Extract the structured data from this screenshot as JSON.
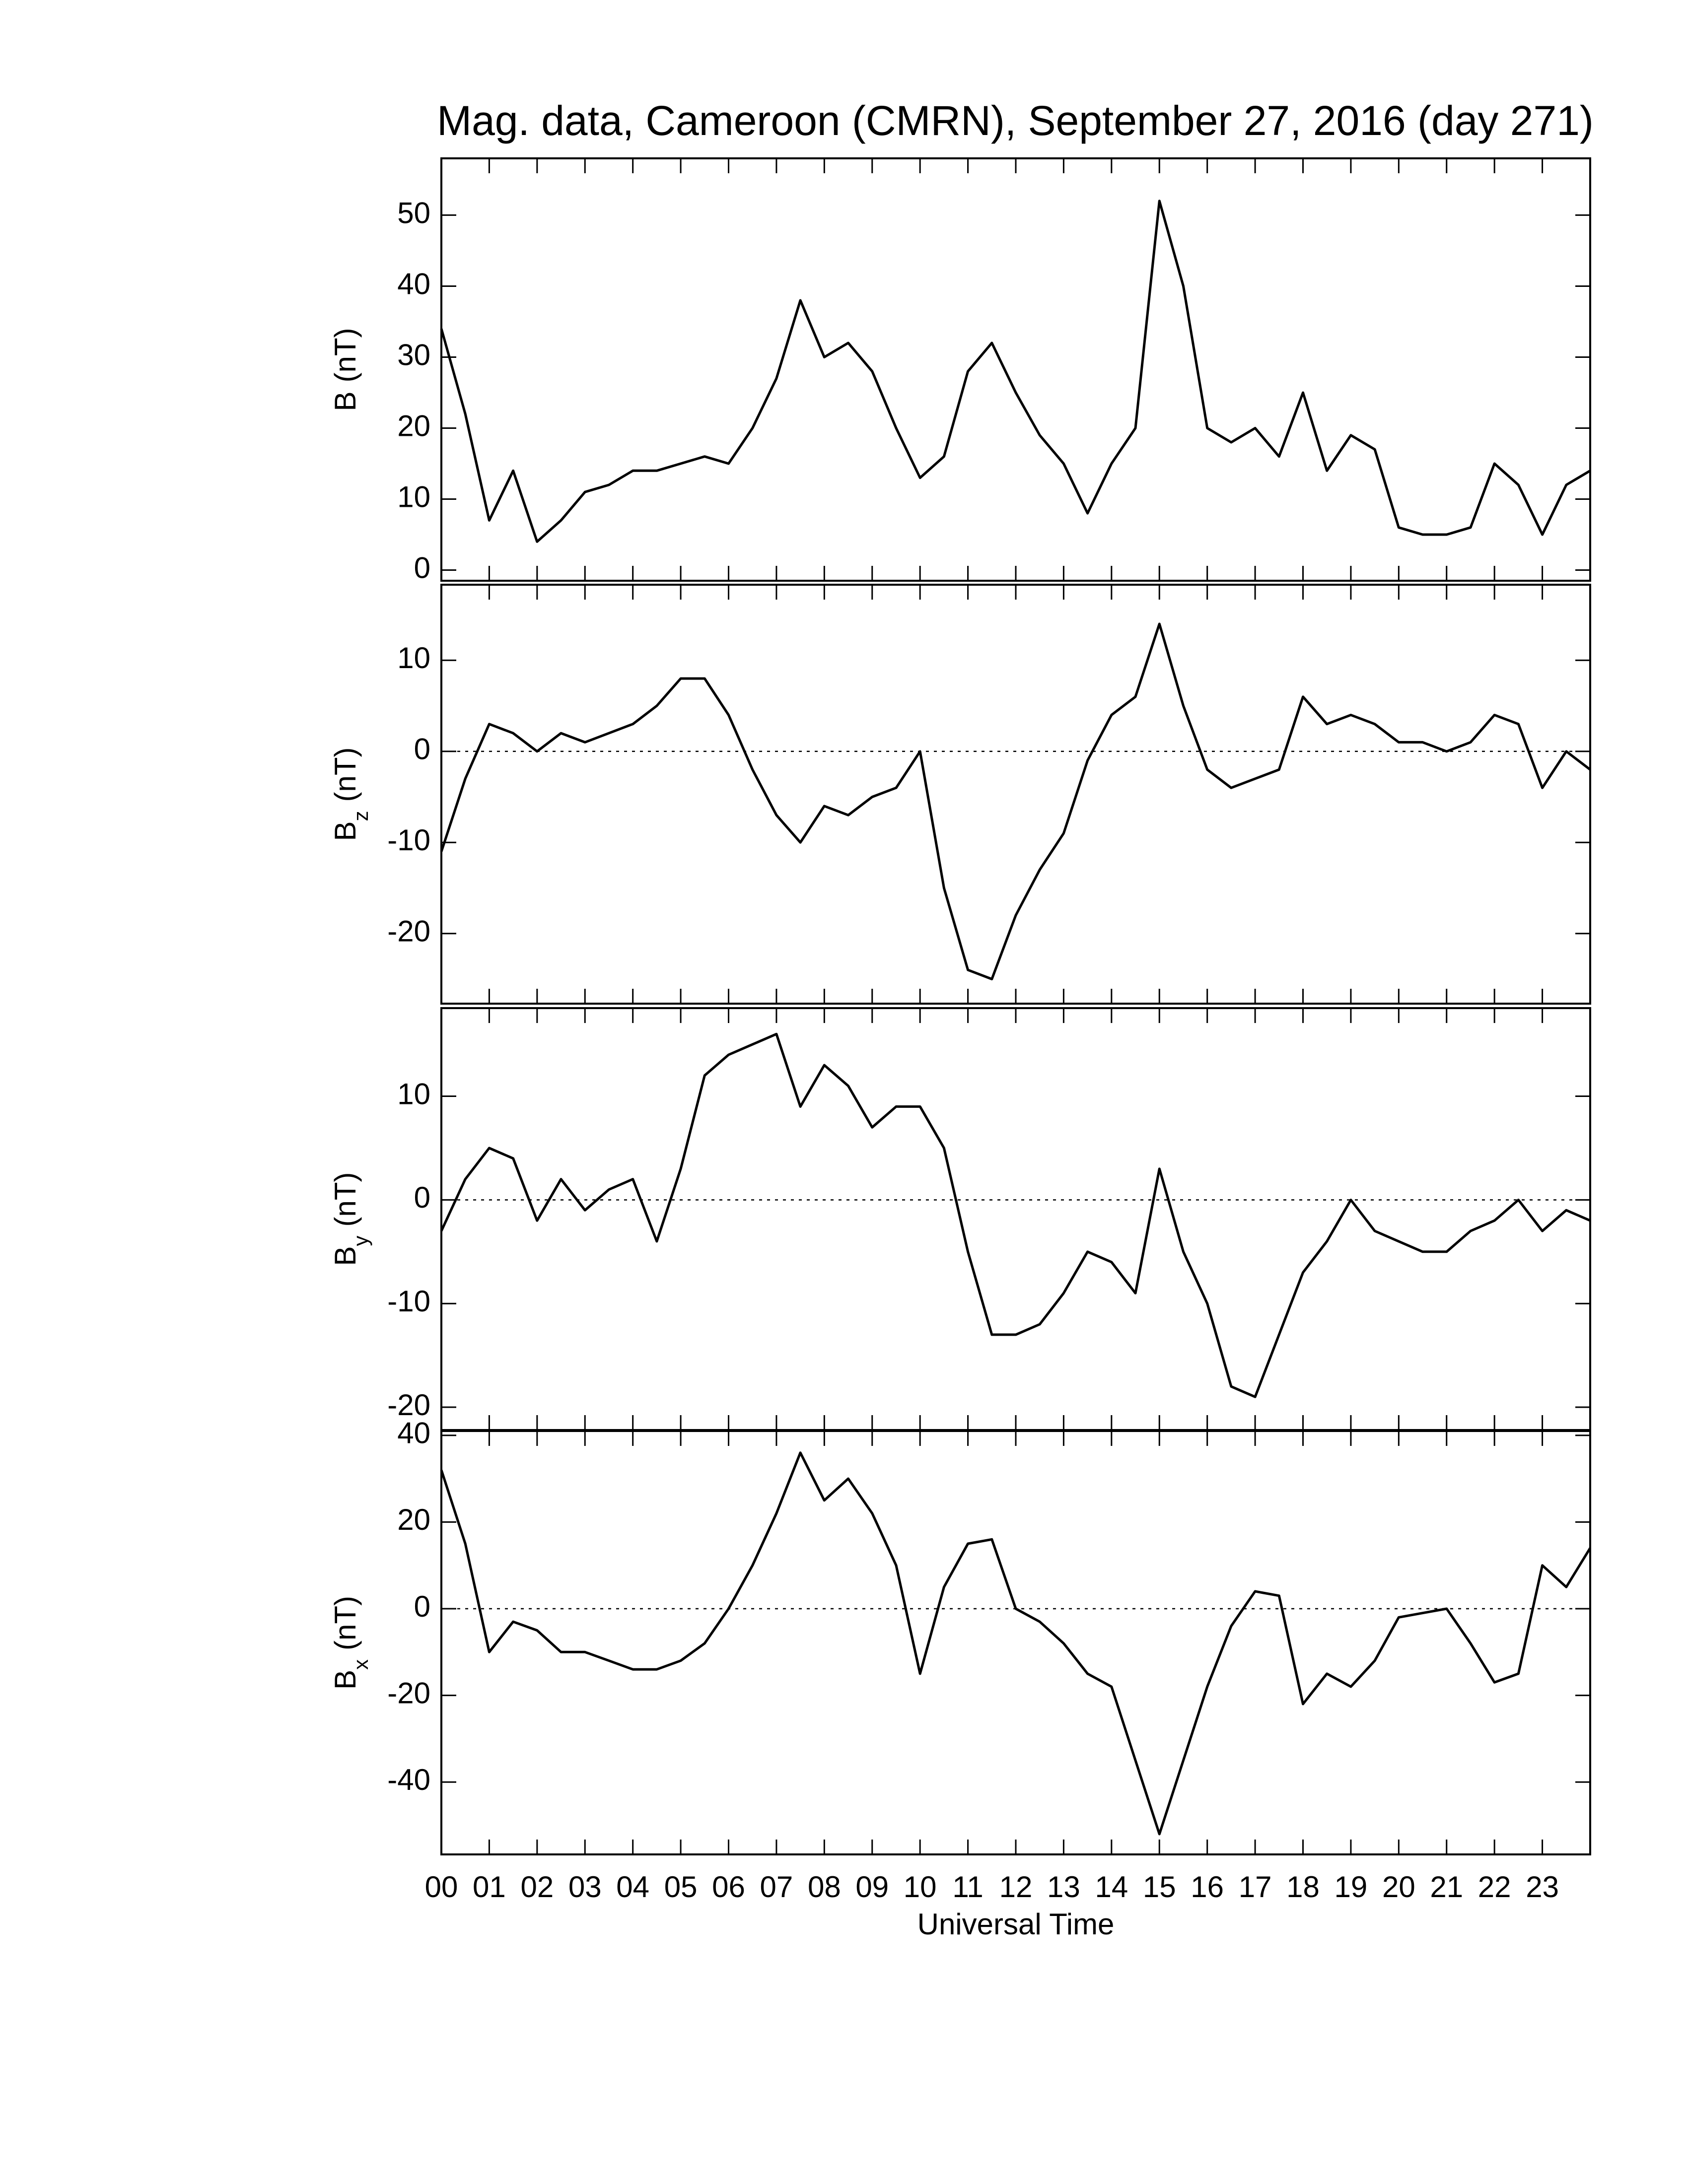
{
  "chart_data": [
    {
      "type": "line",
      "title": "Mag. data, Cameroon (CMRN), September 27, 2016 (day 271)",
      "ylabel": {
        "base": "B",
        "rest": "(nT)"
      },
      "x": [
        0,
        0.5,
        1,
        1.5,
        2,
        2.5,
        3,
        3.5,
        4,
        4.5,
        5,
        5.5,
        6,
        6.5,
        7,
        7.5,
        8,
        8.5,
        9,
        9.5,
        10,
        10.5,
        11,
        11.5,
        12,
        12.5,
        13,
        13.5,
        14,
        14.5,
        15,
        15.5,
        16,
        16.5,
        17,
        17.5,
        18,
        18.5,
        19,
        19.5,
        20,
        20.5,
        21,
        21.5,
        22,
        22.5,
        23,
        23.5,
        24
      ],
      "values": [
        34,
        22,
        7,
        14,
        4,
        7,
        11,
        12,
        14,
        14,
        15,
        16,
        15,
        20,
        27,
        38,
        30,
        32,
        28,
        20,
        13,
        16,
        28,
        32,
        25,
        19,
        15,
        8,
        15,
        20,
        52,
        40,
        20,
        18,
        20,
        16,
        25,
        14,
        19,
        17,
        6,
        5,
        5,
        6,
        15,
        12,
        5,
        12,
        14
      ],
      "color": "#000000",
      "xlim": [
        0,
        24
      ],
      "ylim": [
        -1.5,
        58
      ],
      "yticks": [
        0,
        10,
        20,
        30,
        40,
        50
      ],
      "zero_line": false
    },
    {
      "type": "line",
      "ylabel": {
        "base": "B",
        "sub": "z",
        "rest": "(nT)"
      },
      "x": [
        0,
        0.5,
        1,
        1.5,
        2,
        2.5,
        3,
        3.5,
        4,
        4.5,
        5,
        5.5,
        6,
        6.5,
        7,
        7.5,
        8,
        8.5,
        9,
        9.5,
        10,
        10.5,
        11,
        11.5,
        12,
        12.5,
        13,
        13.5,
        14,
        14.5,
        15,
        15.5,
        16,
        16.5,
        17,
        17.5,
        18,
        18.5,
        19,
        19.5,
        20,
        20.5,
        21,
        21.5,
        22,
        22.5,
        23,
        23.5,
        24
      ],
      "values": [
        -11,
        -3,
        3,
        2,
        0,
        2,
        1,
        2,
        3,
        5,
        8,
        8,
        4,
        -2,
        -7,
        -10,
        -6,
        -7,
        -5,
        -4,
        0,
        -15,
        -24,
        -25,
        -18,
        -13,
        -9,
        -1,
        4,
        6,
        14,
        5,
        -2,
        -4,
        -3,
        -2,
        6,
        3,
        4,
        3,
        1,
        1,
        0,
        1,
        4,
        3,
        -4,
        0,
        -2
      ],
      "color": "#000000",
      "xlim": [
        0,
        24
      ],
      "ylim": [
        -27.7,
        18.3
      ],
      "yticks": [
        -20,
        -10,
        0,
        10
      ],
      "zero_line": true
    },
    {
      "type": "line",
      "ylabel": {
        "base": "B",
        "sub": "y",
        "rest": "(nT)"
      },
      "x": [
        0,
        0.5,
        1,
        1.5,
        2,
        2.5,
        3,
        3.5,
        4,
        4.5,
        5,
        5.5,
        6,
        6.5,
        7,
        7.5,
        8,
        8.5,
        9,
        9.5,
        10,
        10.5,
        11,
        11.5,
        12,
        12.5,
        13,
        13.5,
        14,
        14.5,
        15,
        15.5,
        16,
        16.5,
        17,
        17.5,
        18,
        18.5,
        19,
        19.5,
        20,
        20.5,
        21,
        21.5,
        22,
        22.5,
        23,
        23.5,
        24
      ],
      "values": [
        -3,
        2,
        5,
        4,
        -2,
        2,
        -1,
        1,
        2,
        -4,
        3,
        12,
        14,
        15,
        16,
        9,
        13,
        11,
        7,
        9,
        9,
        5,
        -5,
        -13,
        -13,
        -12,
        -9,
        -5,
        -6,
        -9,
        3,
        -5,
        -10,
        -18,
        -19,
        -13,
        -7,
        -4,
        0,
        -3,
        -4,
        -5,
        -5,
        -3,
        -2,
        0,
        -3,
        -1,
        -2
      ],
      "color": "#000000",
      "xlim": [
        0,
        24
      ],
      "ylim": [
        -22.2,
        18.5
      ],
      "yticks": [
        -20,
        -10,
        0,
        10
      ],
      "zero_line": true
    },
    {
      "type": "line",
      "ylabel": {
        "base": "B",
        "sub": "x",
        "rest": "(nT)"
      },
      "xlabel": "Universal Time",
      "x": [
        0,
        0.5,
        1,
        1.5,
        2,
        2.5,
        3,
        3.5,
        4,
        4.5,
        5,
        5.5,
        6,
        6.5,
        7,
        7.5,
        8,
        8.5,
        9,
        9.5,
        10,
        10.5,
        11,
        11.5,
        12,
        12.5,
        13,
        13.5,
        14,
        14.5,
        15,
        15.5,
        16,
        16.5,
        17,
        17.5,
        18,
        18.5,
        19,
        19.5,
        20,
        20.5,
        21,
        21.5,
        22,
        22.5,
        23,
        23.5,
        24
      ],
      "values": [
        32,
        15,
        -10,
        -3,
        -5,
        -10,
        -10,
        -12,
        -14,
        -14,
        -12,
        -8,
        0,
        10,
        22,
        36,
        25,
        30,
        22,
        10,
        -15,
        5,
        15,
        16,
        0,
        -3,
        -8,
        -15,
        -18,
        -35,
        -52,
        -35,
        -18,
        -4,
        4,
        3,
        -22,
        -15,
        -18,
        -12,
        -2,
        -1,
        0,
        -8,
        -17,
        -15,
        10,
        5,
        14
      ],
      "color": "#000000",
      "xlim": [
        0,
        24
      ],
      "ylim": [
        -56.7,
        41
      ],
      "yticks": [
        -40,
        -20,
        0,
        20,
        40
      ],
      "zero_line": true,
      "xticks": [
        {
          "value": 0,
          "label": "00"
        },
        {
          "value": 1,
          "label": "01"
        },
        {
          "value": 2,
          "label": "02"
        },
        {
          "value": 3,
          "label": "03"
        },
        {
          "value": 4,
          "label": "04"
        },
        {
          "value": 5,
          "label": "05"
        },
        {
          "value": 6,
          "label": "06"
        },
        {
          "value": 7,
          "label": "07"
        },
        {
          "value": 8,
          "label": "08"
        },
        {
          "value": 9,
          "label": "09"
        },
        {
          "value": 10,
          "label": "10"
        },
        {
          "value": 11,
          "label": "11"
        },
        {
          "value": 12,
          "label": "12"
        },
        {
          "value": 13,
          "label": "13"
        },
        {
          "value": 14,
          "label": "14"
        },
        {
          "value": 15,
          "label": "15"
        },
        {
          "value": 16,
          "label": "16"
        },
        {
          "value": 17,
          "label": "17"
        },
        {
          "value": 18,
          "label": "18"
        },
        {
          "value": 19,
          "label": "19"
        },
        {
          "value": 20,
          "label": "20"
        },
        {
          "value": 21,
          "label": "21"
        },
        {
          "value": 22,
          "label": "22"
        },
        {
          "value": 23,
          "label": "23"
        }
      ]
    }
  ]
}
